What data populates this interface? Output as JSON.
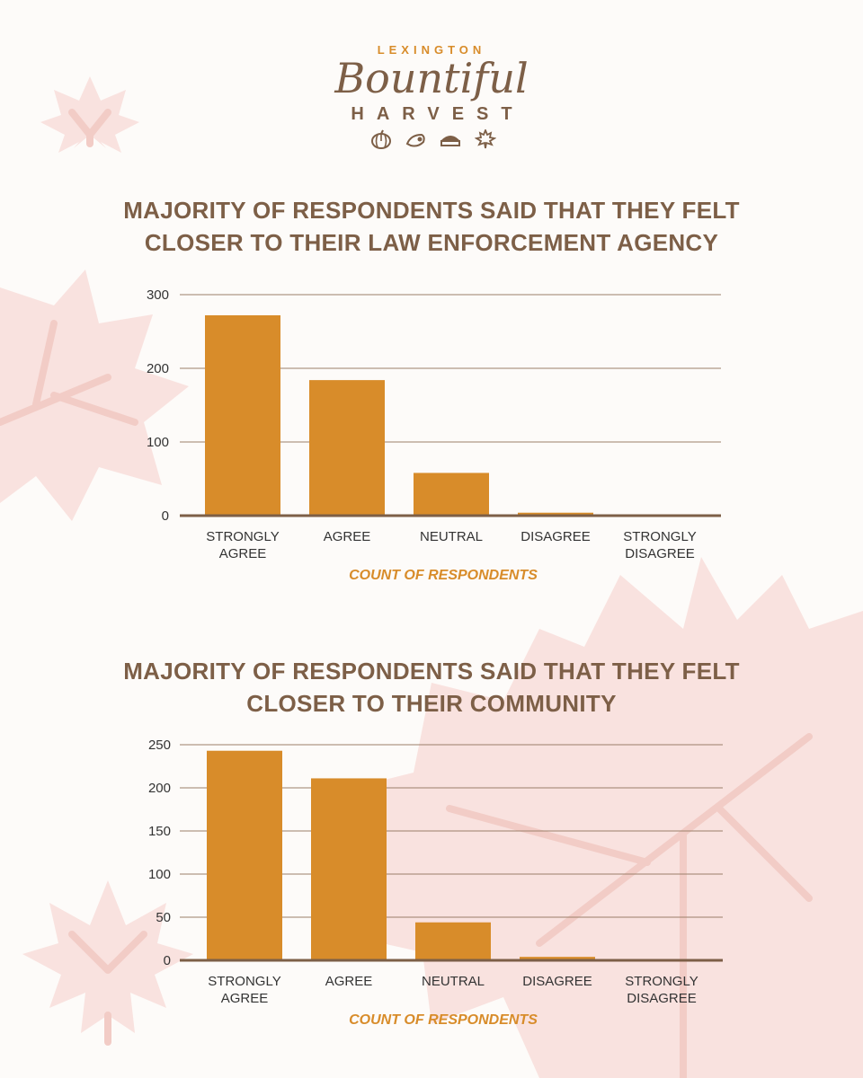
{
  "logo": {
    "top_text": "LEXINGTON",
    "script_text": "Bountiful",
    "bottom_text": "HARVEST",
    "icons": [
      "pumpkin-icon",
      "cornucopia-icon",
      "pie-icon",
      "maple-leaf-icon"
    ]
  },
  "colors": {
    "bar": "#d88c2a",
    "title": "#7d5f47",
    "axis": "#7d5f47",
    "leaf": "#f7dcd8",
    "background": "#fdfbf9"
  },
  "chart_data": [
    {
      "type": "bar",
      "title": "MAJORITY OF RESPONDENTS SAID THAT THEY FELT\nCLOSER TO THEIR LAW ENFORCEMENT AGENCY",
      "categories": [
        "STRONGLY\nAGREE",
        "AGREE",
        "NEUTRAL",
        "DISAGREE",
        "STRONGLY\nDISAGREE"
      ],
      "values": [
        272,
        184,
        58,
        4,
        0
      ],
      "yticks": [
        "0",
        "100",
        "200",
        "300"
      ],
      "ylim": [
        0,
        300
      ],
      "xlabel": "COUNT OF RESPONDENTS",
      "grid": true
    },
    {
      "type": "bar",
      "title": "MAJORITY OF RESPONDENTS SAID THAT THEY FELT\nCLOSER TO THEIR COMMUNITY",
      "categories": [
        "STRONGLY\nAGREE",
        "AGREE",
        "NEUTRAL",
        "DISAGREE",
        "STRONGLY\nDISAGREE"
      ],
      "values": [
        243,
        211,
        44,
        4,
        0
      ],
      "yticks": [
        "0",
        "50",
        "100",
        "150",
        "200",
        "250"
      ],
      "ylim": [
        0,
        250
      ],
      "xlabel": "COUNT OF RESPONDENTS",
      "grid": true
    }
  ]
}
